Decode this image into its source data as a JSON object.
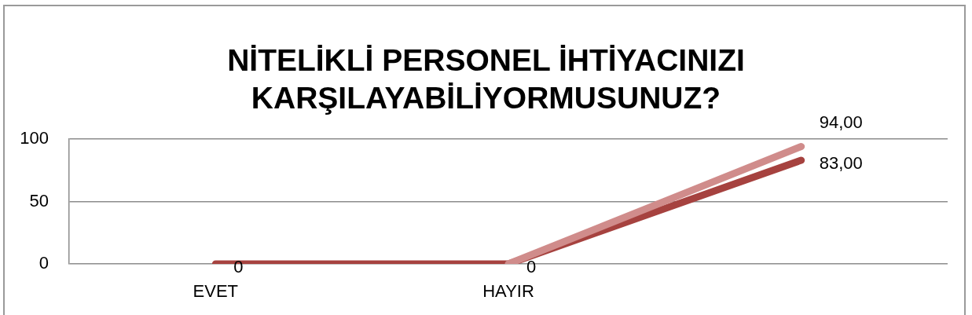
{
  "chart_data": {
    "type": "line",
    "title": "NİTELİKLİ PERSONEL İHTİYACINIZI KARŞILAYABİLİYORMUSUNUZ?",
    "categories": [
      "EVET",
      "HAYIR",
      null
    ],
    "series": [
      {
        "color": "#a6423f",
        "values": [
          0,
          0,
          83
        ],
        "value_labels": [
          "0",
          null,
          "83,00"
        ]
      },
      {
        "color": "#d08c8b",
        "values": [
          null,
          0,
          94
        ],
        "value_labels": [
          null,
          "0",
          "94,00"
        ]
      }
    ],
    "ylim": [
      0,
      100
    ],
    "yticks": [
      0,
      50,
      100
    ],
    "grid": "y",
    "legend": false,
    "marker": "none",
    "line_style": "solid"
  }
}
